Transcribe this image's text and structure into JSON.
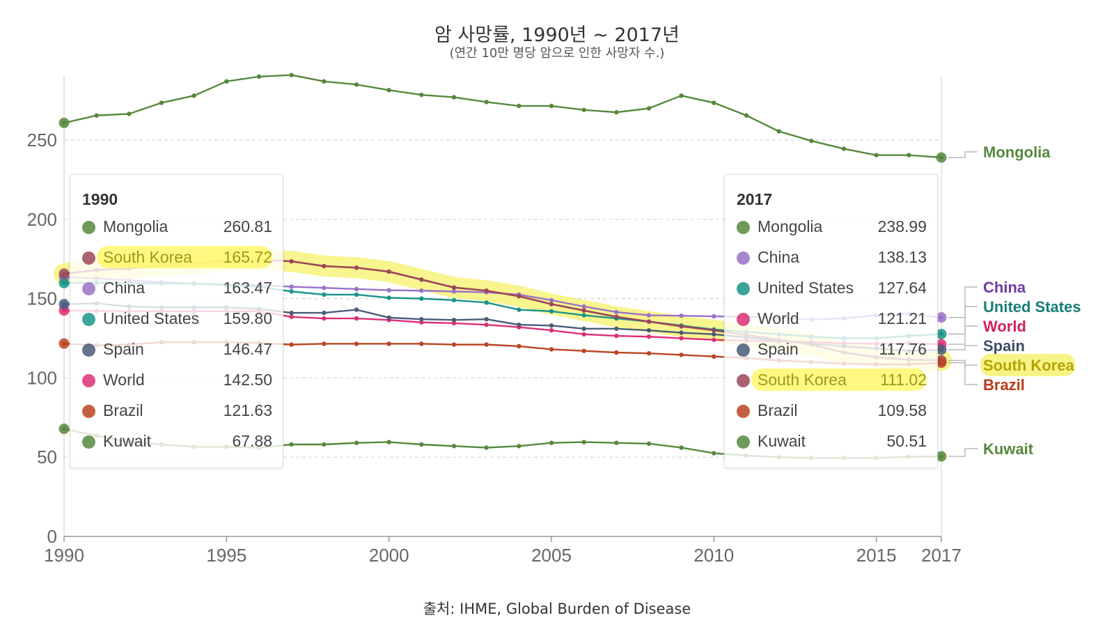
{
  "title": "암 사망률, 1990년 ~ 2017년",
  "subtitle": "(연간 10만 명당 암으로 인한 사망자 수.)",
  "source": "출처: IHME, Global Burden of Disease",
  "chart_data": {
    "type": "line",
    "x": [
      1990,
      1991,
      1992,
      1993,
      1994,
      1995,
      1996,
      1997,
      1998,
      1999,
      2000,
      2001,
      2002,
      2003,
      2004,
      2005,
      2006,
      2007,
      2008,
      2009,
      2010,
      2011,
      2012,
      2013,
      2014,
      2015,
      2016,
      2017
    ],
    "xticks": [
      "1990",
      "1995",
      "2000",
      "2005",
      "2010",
      "2015",
      "2017"
    ],
    "yticks": [
      "0",
      "50",
      "100",
      "150",
      "200",
      "250"
    ],
    "ylim": [
      0,
      290
    ],
    "highlight": "South Korea",
    "series": [
      {
        "name": "Mongolia",
        "color": "#56883c",
        "values": [
          260.81,
          265.5,
          266.5,
          273.5,
          278,
          287,
          290,
          291,
          287,
          285,
          281.5,
          278.5,
          277,
          274,
          271.5,
          271.5,
          269,
          267.5,
          270,
          278,
          273.5,
          265.5,
          255.5,
          249.5,
          244.5,
          240.5,
          240.5,
          238.99
        ]
      },
      {
        "name": "China",
        "color": "#9a72c7",
        "values": [
          163.47,
          162.8,
          161.5,
          160.5,
          159.5,
          159,
          158.5,
          157.5,
          156.8,
          156,
          155.3,
          155,
          154.5,
          154,
          152.5,
          149,
          145,
          141.5,
          139.5,
          139.2,
          138.8,
          138.5,
          137.8,
          136.8,
          137.5,
          139.5,
          140.5,
          138.13
        ]
      },
      {
        "name": "United States",
        "color": "#1a9488",
        "values": [
          159.8,
          160,
          159.8,
          159.5,
          159.5,
          158.5,
          157.5,
          154.5,
          152.5,
          152.5,
          150.5,
          150,
          149,
          147.5,
          143,
          142,
          139.5,
          137.5,
          135.5,
          133,
          130.5,
          129,
          127.5,
          126,
          125,
          125,
          126.5,
          127.64
        ]
      },
      {
        "name": "World",
        "color": "#dc3076",
        "values": [
          142.5,
          142.3,
          142,
          142,
          142,
          142,
          142,
          138.5,
          137.5,
          137.5,
          136.5,
          135,
          134.5,
          133.5,
          132,
          130,
          127.5,
          126.5,
          126,
          125,
          124,
          123.5,
          123,
          122.5,
          121.8,
          121.5,
          121.8,
          121.21
        ]
      },
      {
        "name": "Spain",
        "color": "#4a5c79",
        "values": [
          146.47,
          147,
          145,
          144.5,
          144.5,
          144.5,
          143.5,
          141,
          141,
          143,
          138,
          137,
          136.5,
          137,
          133.5,
          133,
          131,
          131,
          130,
          128.5,
          127.5,
          125.5,
          123.5,
          121.5,
          120,
          118.5,
          117,
          117.76
        ]
      },
      {
        "name": "South Korea",
        "color": "#9b4658",
        "values": [
          165.72,
          168,
          169,
          171,
          172,
          174,
          174.5,
          173.5,
          170.5,
          169.5,
          167,
          162,
          157,
          155,
          151.5,
          146.5,
          142.5,
          138.5,
          135.5,
          132.5,
          130,
          127,
          124,
          121,
          116,
          113,
          111.5,
          111.02
        ]
      },
      {
        "name": "Brazil",
        "color": "#bb4424",
        "values": [
          121.63,
          120.5,
          121,
          122.5,
          122.5,
          122.5,
          122,
          121,
          121.5,
          121.5,
          121.5,
          121.5,
          121,
          121,
          120,
          118,
          117,
          116,
          115.5,
          114.5,
          113.5,
          112.5,
          111,
          110,
          109,
          108.5,
          108.5,
          109.58
        ]
      },
      {
        "name": "Kuwait",
        "color": "#56883c",
        "values": [
          67.88,
          63.5,
          59.5,
          58,
          56.5,
          56.5,
          56,
          58,
          58,
          59,
          59.5,
          58,
          57,
          56,
          57,
          59,
          59.5,
          59,
          58.5,
          56,
          52.5,
          51,
          50,
          49.5,
          49.5,
          49.5,
          50.2,
          50.51
        ]
      }
    ],
    "end_labels": [
      {
        "name": "Mongolia",
        "color": "#56883c"
      },
      {
        "name": "China",
        "color": "#6e3aa3"
      },
      {
        "name": "United States",
        "color": "#167f76"
      },
      {
        "name": "World",
        "color": "#d0205e"
      },
      {
        "name": "Spain",
        "color": "#3e4d66"
      },
      {
        "name": "South Korea",
        "color": "#b5a400"
      },
      {
        "name": "Brazil",
        "color": "#b83b1c"
      },
      {
        "name": "Kuwait",
        "color": "#56883c"
      }
    ]
  },
  "tooltip_left": {
    "year": "1990",
    "rows": [
      {
        "name": "Mongolia",
        "value": "260.81",
        "color": "#56883c"
      },
      {
        "name": "South Korea",
        "value": "165.72",
        "color": "#9b4658"
      },
      {
        "name": "China",
        "value": "163.47",
        "color": "#9a72c7"
      },
      {
        "name": "United States",
        "value": "159.80",
        "color": "#1a9488"
      },
      {
        "name": "Spain",
        "value": "146.47",
        "color": "#4a5c79"
      },
      {
        "name": "World",
        "value": "142.50",
        "color": "#dc3076"
      },
      {
        "name": "Brazil",
        "value": "121.63",
        "color": "#bb4424"
      },
      {
        "name": "Kuwait",
        "value": "67.88",
        "color": "#56883c"
      }
    ]
  },
  "tooltip_right": {
    "year": "2017",
    "rows": [
      {
        "name": "Mongolia",
        "value": "238.99",
        "color": "#56883c"
      },
      {
        "name": "China",
        "value": "138.13",
        "color": "#9a72c7"
      },
      {
        "name": "United States",
        "value": "127.64",
        "color": "#1a9488"
      },
      {
        "name": "World",
        "value": "121.21",
        "color": "#dc3076"
      },
      {
        "name": "Spain",
        "value": "117.76",
        "color": "#4a5c79"
      },
      {
        "name": "South Korea",
        "value": "111.02",
        "color": "#9b4658"
      },
      {
        "name": "Brazil",
        "value": "109.58",
        "color": "#bb4424"
      },
      {
        "name": "Kuwait",
        "value": "50.51",
        "color": "#56883c"
      }
    ]
  }
}
